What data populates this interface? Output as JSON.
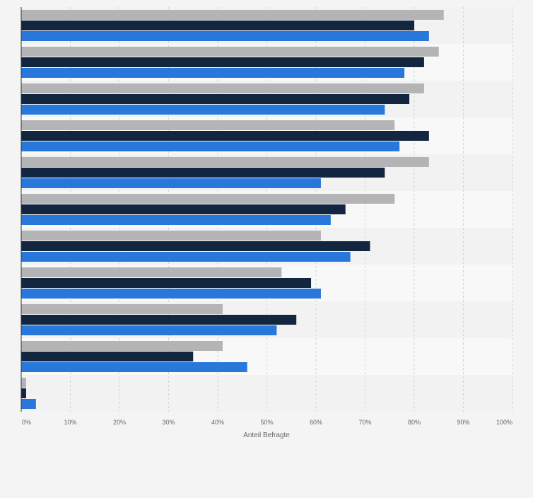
{
  "chart_data": {
    "type": "bar",
    "orientation": "horizontal",
    "xlabel": "Anteil Befragte",
    "x_ticks": [
      "0%",
      "10%",
      "20%",
      "30%",
      "40%",
      "50%",
      "60%",
      "70%",
      "80%",
      "90%",
      "100%"
    ],
    "xlim": [
      0,
      100
    ],
    "grid": true,
    "category_count": 11,
    "series": [
      {
        "color": "#b4b4b6",
        "values": [
          86,
          85,
          82,
          76,
          83,
          76,
          61,
          53,
          41,
          41,
          1
        ]
      },
      {
        "color": "#12263f",
        "values": [
          80,
          82,
          79,
          83,
          74,
          66,
          71,
          59,
          56,
          35,
          1
        ]
      },
      {
        "color": "#2878dc",
        "values": [
          83,
          78,
          74,
          77,
          61,
          63,
          67,
          61,
          52,
          46,
          3
        ]
      }
    ]
  }
}
